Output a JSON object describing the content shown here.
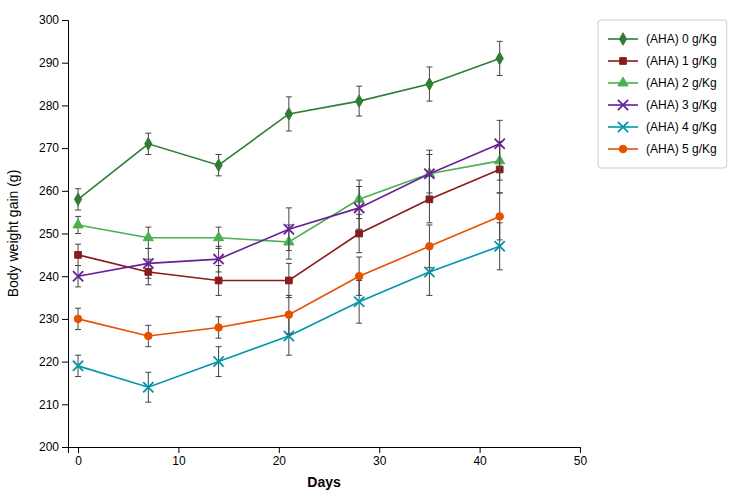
{
  "chart_data": {
    "type": "line",
    "x_label": "Days",
    "y_label": "Body weight gain (g)",
    "x": [
      0,
      7,
      14,
      21,
      28,
      35,
      42
    ],
    "series": [
      {
        "name": "(AHA) 0 g/Kg",
        "color": "#2E7D32",
        "marker": "diamond",
        "values": [
          258,
          271,
          266,
          278,
          281,
          285,
          291
        ],
        "errors": [
          2.5,
          2.5,
          2.5,
          4,
          3.5,
          4,
          4
        ]
      },
      {
        "name": "(AHA) 1 g/Kg",
        "color": "#8B1A1A",
        "marker": "square",
        "values": [
          245,
          241,
          239,
          239,
          250,
          258,
          265
        ],
        "errors": [
          2.5,
          3,
          3.5,
          4,
          4.5,
          5.5,
          5.5
        ]
      },
      {
        "name": "(AHA) 2 g/Kg",
        "color": "#4CAF50",
        "marker": "triangle",
        "values": [
          252,
          249,
          249,
          248,
          258,
          264,
          267
        ],
        "errors": [
          2,
          2.5,
          2.5,
          4,
          4.5,
          4.5,
          4.5
        ]
      },
      {
        "name": "(AHA) 3 g/Kg",
        "color": "#6A1F9A",
        "marker": "x",
        "values": [
          240,
          243,
          244,
          251,
          256,
          264,
          271
        ],
        "errors": [
          2.5,
          3.5,
          3,
          5,
          5,
          5.5,
          5.5
        ]
      },
      {
        "name": "(AHA) 4 g/Kg",
        "color": "#0097A7",
        "marker": "x",
        "values": [
          219,
          214,
          220,
          226,
          234,
          241,
          247
        ],
        "errors": [
          2.5,
          3.5,
          3.5,
          4.5,
          5,
          5.5,
          5.5
        ]
      },
      {
        "name": "(AHA) 5 g/Kg",
        "color": "#E65100",
        "marker": "circle",
        "values": [
          230,
          226,
          228,
          231,
          240,
          247,
          254
        ],
        "errors": [
          2.5,
          2.5,
          2.5,
          4.5,
          4.5,
          5,
          5.5
        ]
      }
    ],
    "xlim": [
      -1,
      50
    ],
    "ylim": [
      200,
      300
    ],
    "xticks": [
      0,
      10,
      20,
      30,
      40,
      50
    ],
    "yticks": [
      200,
      210,
      220,
      230,
      240,
      250,
      260,
      270,
      280,
      290,
      300
    ],
    "grid": false,
    "legend": "right"
  }
}
